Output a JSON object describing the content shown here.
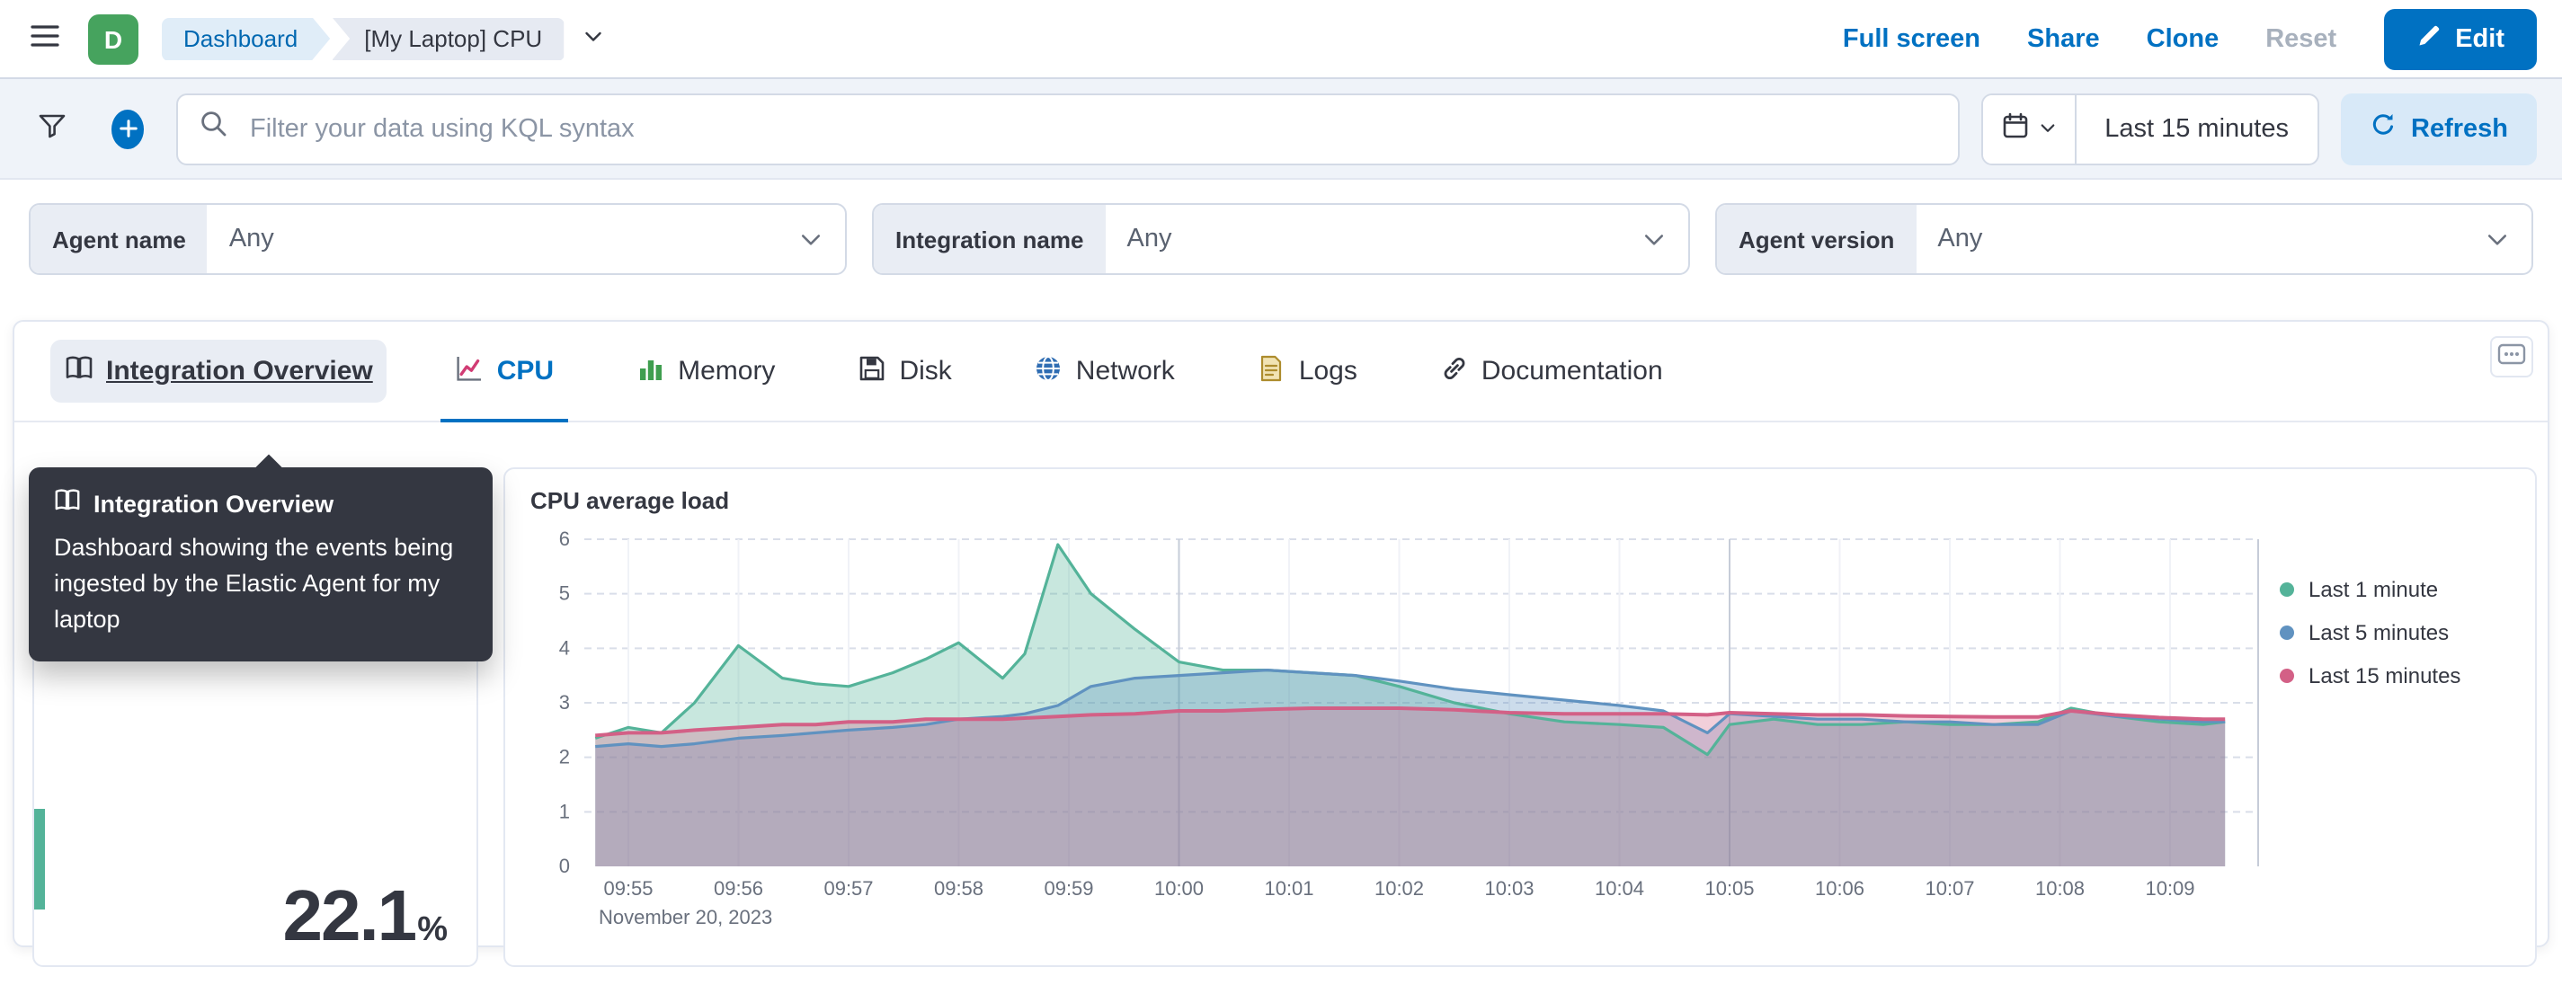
{
  "header": {
    "space_initial": "D",
    "breadcrumbs": [
      {
        "label": "Dashboard"
      },
      {
        "label": "[My Laptop] CPU"
      }
    ],
    "actions": [
      {
        "label": "Full screen"
      },
      {
        "label": "Share"
      },
      {
        "label": "Clone"
      },
      {
        "label": "Reset",
        "disabled": true
      }
    ],
    "edit_button": "Edit"
  },
  "query_bar": {
    "placeholder": "Filter your data using KQL syntax",
    "time_range": "Last 15 minutes",
    "refresh_label": "Refresh"
  },
  "filters": [
    {
      "label": "Agent name",
      "value": "Any"
    },
    {
      "label": "Integration name",
      "value": "Any"
    },
    {
      "label": "Agent version",
      "value": "Any"
    }
  ],
  "tabs": [
    {
      "label": "Integration Overview",
      "icon": "book-icon",
      "state": "hover"
    },
    {
      "label": "CPU",
      "icon": "line-chart-icon",
      "state": "selected"
    },
    {
      "label": "Memory",
      "icon": "bar-chart-icon",
      "state": "default"
    },
    {
      "label": "Disk",
      "icon": "disk-icon",
      "state": "default"
    },
    {
      "label": "Network",
      "icon": "globe-icon",
      "state": "default"
    },
    {
      "label": "Logs",
      "icon": "logs-icon",
      "state": "default"
    },
    {
      "label": "Documentation",
      "icon": "link-icon",
      "state": "default"
    }
  ],
  "tooltip": {
    "title": "Integration Overview",
    "body": "Dashboard showing the events being ingested by the Elastic Agent for my laptop"
  },
  "metric": {
    "value": "22.1",
    "unit": "%"
  },
  "theme_colors": {
    "accent": "#0071c2",
    "accent_soft": "#d8e9f8",
    "avatar": "#46a35e",
    "tooltip_bg": "#343741",
    "metric_accent": "#54b399",
    "bar_bg": "#eff3f9",
    "border": "#d3dae6",
    "text": "#343741",
    "text_subdued": "#69707d",
    "link_disabled": "#a8b1bd",
    "crumb_blue_bg": "#e0edf8",
    "crumb_blue_text": "#0068b1"
  },
  "chart_data": {
    "type": "area",
    "title": "CPU average load",
    "date_label": "November 20, 2023",
    "legend_position": "right",
    "grid": true,
    "x_unit": "minute-of-day",
    "x_domain": [
      594.6,
      609.8
    ],
    "y_domain": [
      0,
      6
    ],
    "y_ticks": [
      0,
      1,
      2,
      3,
      4,
      5,
      6
    ],
    "x_ticks": [
      {
        "t": 595,
        "label": "09:55"
      },
      {
        "t": 596,
        "label": "09:56"
      },
      {
        "t": 597,
        "label": "09:57"
      },
      {
        "t": 598,
        "label": "09:58"
      },
      {
        "t": 599,
        "label": "09:59"
      },
      {
        "t": 600,
        "label": "10:00"
      },
      {
        "t": 601,
        "label": "10:01"
      },
      {
        "t": 602,
        "label": "10:02"
      },
      {
        "t": 603,
        "label": "10:03"
      },
      {
        "t": 604,
        "label": "10:04"
      },
      {
        "t": 605,
        "label": "10:05"
      },
      {
        "t": 606,
        "label": "10:06"
      },
      {
        "t": 607,
        "label": "10:07"
      },
      {
        "t": 608,
        "label": "10:08"
      },
      {
        "t": 609,
        "label": "10:09"
      }
    ],
    "x_major_gridlines": [
      600,
      605
    ],
    "x": [
      594.7,
      595.0,
      595.3,
      595.6,
      596.0,
      596.4,
      596.7,
      597.0,
      597.4,
      597.7,
      598.0,
      598.4,
      598.6,
      598.9,
      599.2,
      599.6,
      600.0,
      600.4,
      600.8,
      601.2,
      601.6,
      602.0,
      602.5,
      603.0,
      603.5,
      604.0,
      604.4,
      604.8,
      605.0,
      605.4,
      605.8,
      606.2,
      606.6,
      607.0,
      607.4,
      607.8,
      608.1,
      608.5,
      608.9,
      609.3,
      609.5
    ],
    "series": [
      {
        "name": "Last 1 minute",
        "color": "#54B399",
        "fill_opacity": 0.32,
        "stroke_width": 1.6,
        "values": [
          2.35,
          2.55,
          2.45,
          3.0,
          4.05,
          3.45,
          3.35,
          3.3,
          3.55,
          3.8,
          4.1,
          3.45,
          3.9,
          5.9,
          5.0,
          4.35,
          3.75,
          3.6,
          3.6,
          3.55,
          3.5,
          3.3,
          3.0,
          2.8,
          2.65,
          2.6,
          2.55,
          2.05,
          2.6,
          2.7,
          2.6,
          2.6,
          2.65,
          2.6,
          2.6,
          2.65,
          2.9,
          2.75,
          2.65,
          2.6,
          2.65
        ]
      },
      {
        "name": "Last 5 minutes",
        "color": "#6092C0",
        "fill_opacity": 0.32,
        "stroke_width": 1.6,
        "values": [
          2.2,
          2.25,
          2.2,
          2.25,
          2.35,
          2.4,
          2.45,
          2.5,
          2.55,
          2.6,
          2.7,
          2.75,
          2.8,
          2.95,
          3.3,
          3.45,
          3.5,
          3.55,
          3.6,
          3.55,
          3.5,
          3.4,
          3.25,
          3.15,
          3.05,
          2.95,
          2.85,
          2.45,
          2.8,
          2.75,
          2.7,
          2.7,
          2.65,
          2.65,
          2.6,
          2.6,
          2.85,
          2.75,
          2.7,
          2.65,
          2.65
        ]
      },
      {
        "name": "Last 15 minutes",
        "color": "#D36086",
        "fill_opacity": 0.3,
        "stroke_width": 2,
        "values": [
          2.4,
          2.45,
          2.45,
          2.5,
          2.55,
          2.6,
          2.6,
          2.65,
          2.65,
          2.7,
          2.7,
          2.7,
          2.72,
          2.75,
          2.78,
          2.8,
          2.85,
          2.85,
          2.88,
          2.9,
          2.9,
          2.9,
          2.87,
          2.82,
          2.8,
          2.8,
          2.8,
          2.78,
          2.82,
          2.8,
          2.78,
          2.78,
          2.76,
          2.75,
          2.74,
          2.74,
          2.85,
          2.78,
          2.73,
          2.7,
          2.7
        ]
      }
    ]
  }
}
